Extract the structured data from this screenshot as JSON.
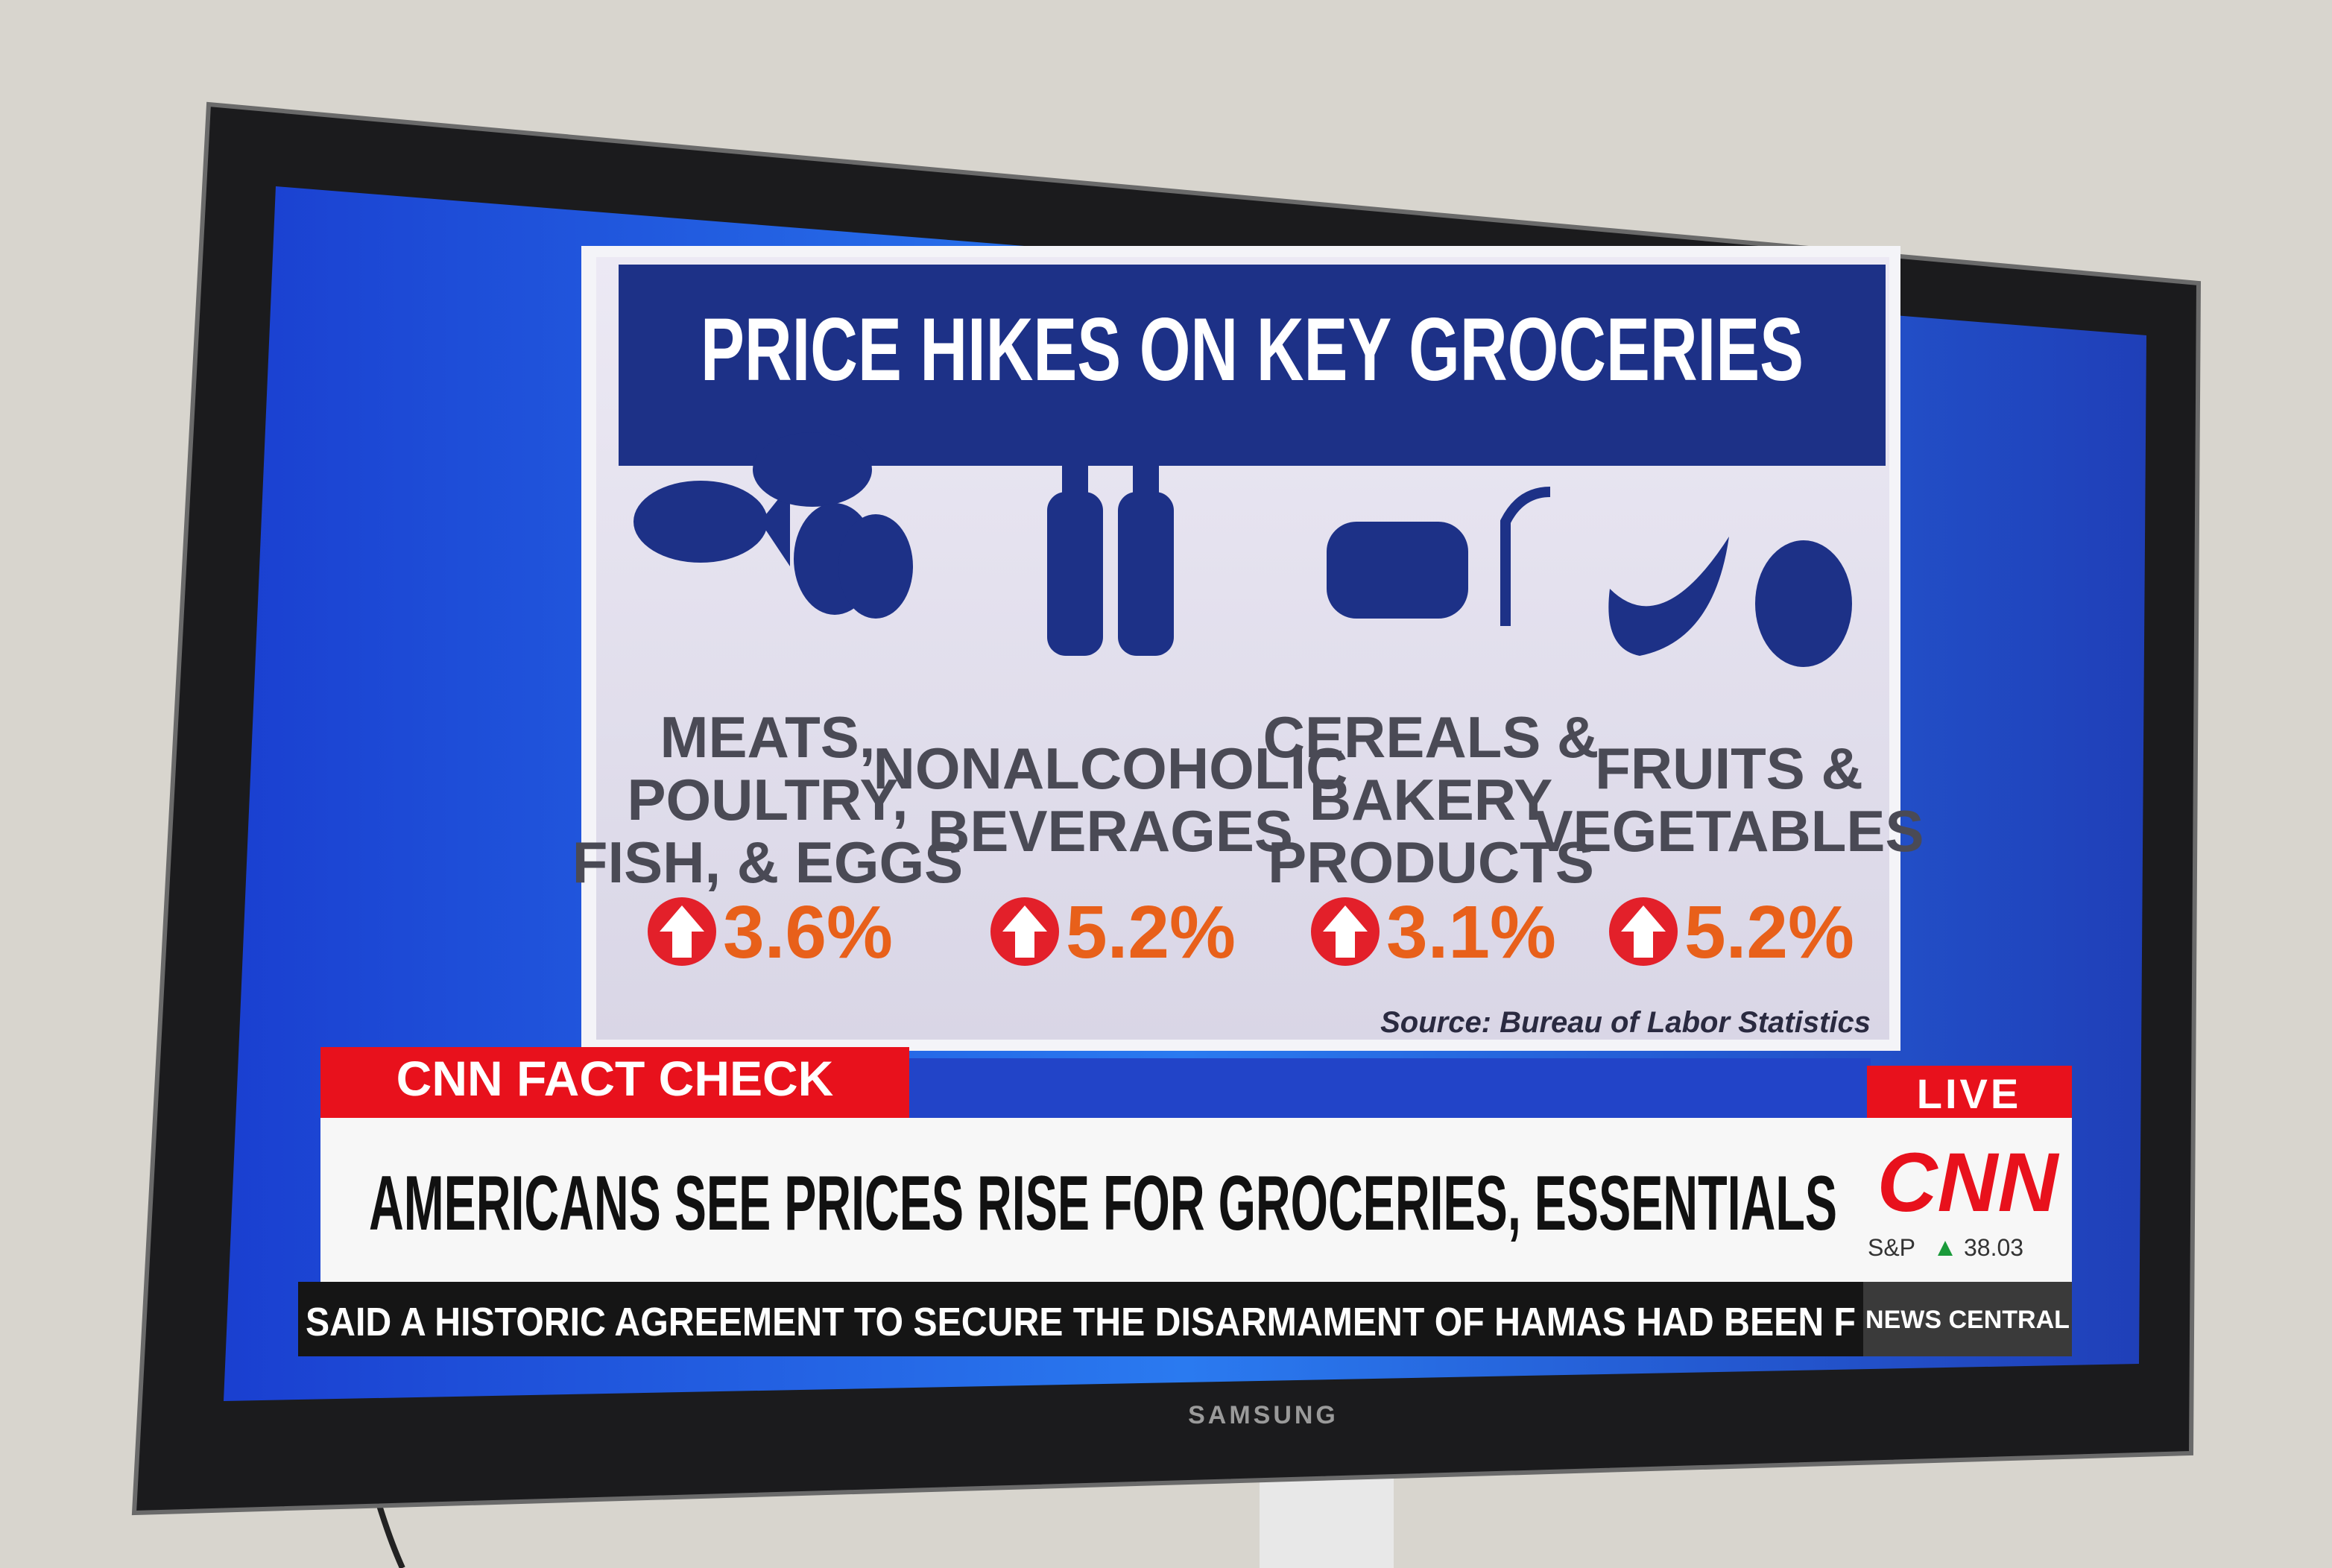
{
  "graphic": {
    "title": "PRICE HIKES ON KEY GROCERIES",
    "items": [
      {
        "label": [
          "MEATS,",
          "POULTRY,",
          "FISH, & EGGS"
        ],
        "change": "3.6%"
      },
      {
        "label": [
          "NONALCOHOLIC",
          "BEVERAGES"
        ],
        "change": "5.2%"
      },
      {
        "label": [
          "CEREALS &",
          "BAKERY",
          "PRODUCTS"
        ],
        "change": "3.1%"
      },
      {
        "label": [
          "FRUITS &",
          "VEGETABLES"
        ],
        "change": "5.2%"
      }
    ],
    "source": "Source: Bureau of Labor Statistics"
  },
  "chyron": {
    "tag": "CNN FACT CHECK",
    "headline": "AMERICANS SEE PRICES RISE FOR GROCERIES, ESSENTIALS",
    "live": "LIVE",
    "logo": "CNN",
    "ticker_label": "S&P",
    "ticker_value": "38.03"
  },
  "crawl": {
    "text": "SAID A HISTORIC AGREEMENT TO SECURE THE DISARMAMENT OF HAMAS HAD BEEN F",
    "label": "NEWS CENTRAL"
  },
  "tv": {
    "brand": "SAMSUNG"
  }
}
